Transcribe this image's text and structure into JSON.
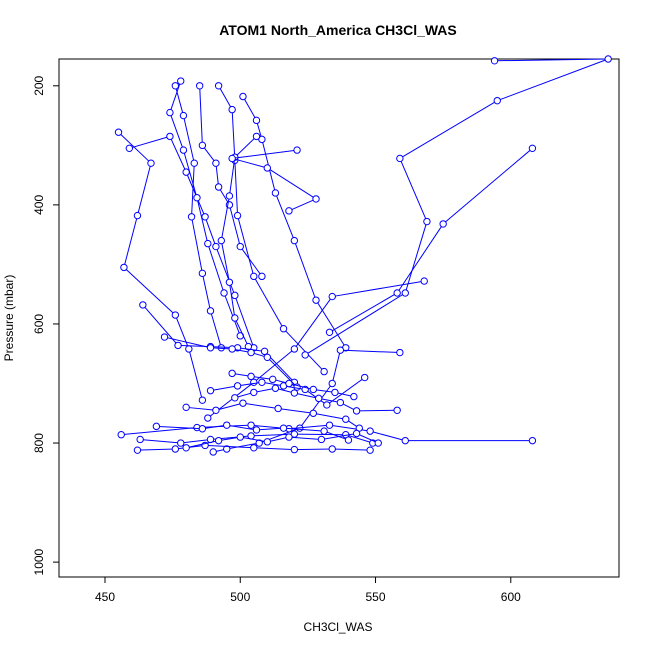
{
  "chart_data": {
    "type": "line",
    "title": "ATOM1 North_America CH3Cl_WAS",
    "xlabel": "CH3Cl_WAS",
    "ylabel": "Pressure (mbar)",
    "xlim": [
      433,
      640
    ],
    "ylim": [
      1025,
      155
    ],
    "y_reversed": true,
    "x_ticks": [
      450,
      500,
      550,
      600
    ],
    "y_ticks": [
      200,
      400,
      600,
      800,
      1000
    ],
    "grid": false,
    "colors": {
      "series": "#0000ff",
      "axis": "#000000",
      "background": "#ffffff"
    },
    "series": [
      {
        "x": [
          455,
          467,
          462,
          457,
          476,
          481,
          486
        ],
        "y": [
          278,
          330,
          418,
          505,
          585,
          642,
          728
        ]
      },
      {
        "x": [
          476,
          479,
          483,
          482,
          486,
          489,
          493
        ],
        "y": [
          200,
          250,
          330,
          420,
          515,
          578,
          640
        ]
      },
      {
        "x": [
          459,
          474,
          480,
          487,
          491,
          498,
          505
        ],
        "y": [
          305,
          285,
          345,
          420,
          470,
          552,
          640
        ]
      },
      {
        "x": [
          478,
          474,
          479,
          484,
          488,
          494,
          500
        ],
        "y": [
          192,
          245,
          308,
          388,
          465,
          548,
          620
        ]
      },
      {
        "x": [
          485,
          486,
          491,
          492,
          496,
          500,
          508
        ],
        "y": [
          200,
          300,
          330,
          370,
          400,
          470,
          520
        ]
      },
      {
        "x": [
          492,
          497,
          498,
          499,
          505,
          516,
          531
        ],
        "y": [
          200,
          240,
          325,
          418,
          520,
          608,
          680
        ]
      },
      {
        "x": [
          501,
          506,
          508,
          513,
          520,
          528,
          539
        ],
        "y": [
          218,
          258,
          290,
          380,
          460,
          560,
          640
        ]
      },
      {
        "x": [
          506,
          498,
          496,
          493,
          496,
          498,
          503
        ],
        "y": [
          285,
          320,
          385,
          460,
          530,
          590,
          638
        ]
      },
      {
        "x": [
          521,
          497,
          510,
          528,
          518
        ],
        "y": [
          308,
          322,
          338,
          390,
          410
        ]
      },
      {
        "x": [
          594,
          636,
          595,
          559,
          569,
          561,
          524
        ],
        "y": [
          158,
          155,
          225,
          322,
          428,
          548,
          652
        ]
      },
      {
        "x": [
          608,
          575,
          558,
          533
        ],
        "y": [
          305,
          432,
          548,
          614
        ]
      },
      {
        "x": [
          568,
          534,
          520,
          505,
          488
        ],
        "y": [
          528,
          554,
          642,
          698,
          758
        ]
      },
      {
        "x": [
          559,
          537,
          534,
          522,
          507,
          495,
          490
        ],
        "y": [
          648,
          644,
          700,
          775,
          800,
          810,
          815
        ]
      },
      {
        "x": [
          464,
          477,
          489,
          499,
          509,
          520
        ],
        "y": [
          568,
          636,
          638,
          640,
          646,
          698
        ]
      },
      {
        "x": [
          472,
          489,
          497,
          504,
          510,
          521
        ],
        "y": [
          622,
          640,
          642,
          648,
          656,
          706
        ]
      },
      {
        "x": [
          456,
          484,
          504,
          518,
          533,
          548,
          561,
          608
        ],
        "y": [
          786,
          774,
          770,
          776,
          770,
          780,
          796,
          796
        ]
      },
      {
        "x": [
          463,
          478,
          489,
          504,
          520,
          539,
          549
        ],
        "y": [
          794,
          800,
          794,
          788,
          785,
          786,
          800
        ]
      },
      {
        "x": [
          469,
          486,
          495,
          506,
          516,
          531,
          540
        ],
        "y": [
          772,
          776,
          770,
          778,
          775,
          780,
          795
        ]
      },
      {
        "x": [
          462,
          476,
          487,
          505,
          520,
          534,
          548
        ],
        "y": [
          812,
          810,
          804,
          808,
          811,
          810,
          812
        ]
      },
      {
        "x": [
          480,
          491,
          501,
          514,
          527,
          539,
          544
        ],
        "y": [
          740,
          745,
          733,
          742,
          750,
          760,
          775
        ]
      },
      {
        "x": [
          489,
          499,
          508,
          516,
          524,
          532,
          546
        ],
        "y": [
          712,
          704,
          698,
          704,
          710,
          736,
          690
        ]
      },
      {
        "x": [
          498,
          505,
          513,
          520,
          529,
          537,
          543,
          558
        ],
        "y": [
          724,
          715,
          708,
          716,
          725,
          732,
          746,
          745
        ]
      },
      {
        "x": [
          480,
          492,
          500,
          510,
          518,
          530,
          543,
          551
        ],
        "y": [
          808,
          796,
          790,
          798,
          790,
          794,
          784,
          800
        ]
      },
      {
        "x": [
          497,
          504,
          512,
          518,
          527,
          535,
          542
        ],
        "y": [
          683,
          688,
          693,
          700,
          710,
          715,
          722
        ]
      }
    ]
  }
}
